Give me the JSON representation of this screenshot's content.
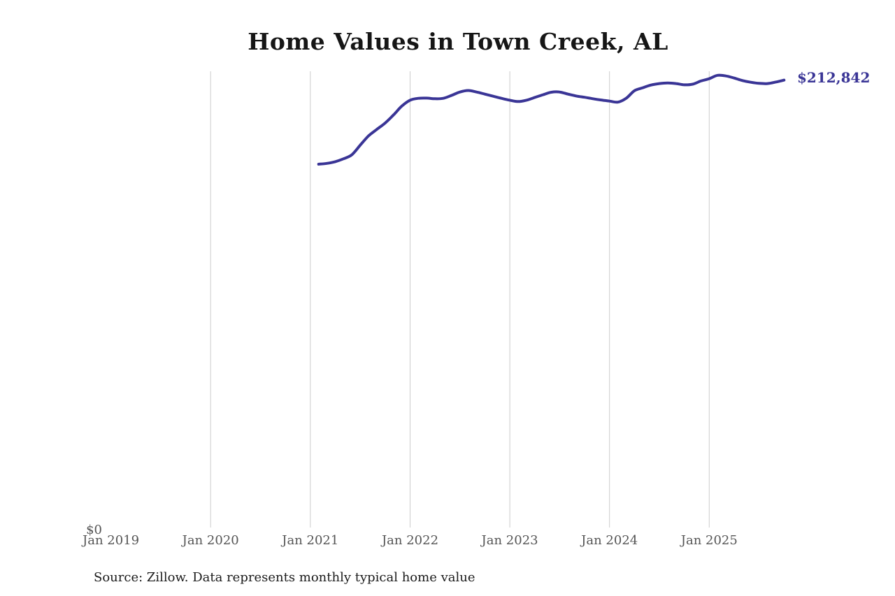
{
  "page": {
    "background": "#ffffff"
  },
  "chart_data": {
    "type": "line",
    "title": "Home Values in Town Creek, AL",
    "y_zero_label": "$0",
    "end_label": "$212,842",
    "latest_value": 212842,
    "legend": "none",
    "grid": "vertical-only",
    "x_axis_start": "Jan 2019",
    "x_ticks": [
      {
        "label": "Jan 2019",
        "gridline": false
      },
      {
        "label": "Jan 2020",
        "gridline": true
      },
      {
        "label": "Jan 2021",
        "gridline": true
      },
      {
        "label": "Jan 2022",
        "gridline": true
      },
      {
        "label": "Jan 2023",
        "gridline": true
      },
      {
        "label": "Jan 2024",
        "gridline": true
      },
      {
        "label": "Jan 2025",
        "gridline": true
      }
    ],
    "series": [
      {
        "name": "Monthly typical home value",
        "start_month": "Feb 2021",
        "monthly_values": [
          173000,
          173400,
          174200,
          175600,
          177500,
          182000,
          186400,
          189500,
          192500,
          196300,
          200500,
          203300,
          204200,
          204300,
          204000,
          204200,
          205600,
          207200,
          207900,
          207200,
          206200,
          205200,
          204200,
          203300,
          202700,
          203300,
          204600,
          205900,
          207100,
          207200,
          206200,
          205300,
          204700,
          204000,
          203400,
          202900,
          202400,
          204200,
          207800,
          209200,
          210500,
          211200,
          211500,
          211200,
          210600,
          210900,
          212400,
          213500,
          215100,
          214800,
          213800,
          212600,
          211800,
          211300,
          211200,
          211900,
          212842
        ]
      }
    ]
  },
  "footer": {
    "source": "Source: Zillow. Data represents monthly typical home value"
  },
  "colors": {
    "line": "#3a3596",
    "gridline": "#cccccc",
    "axis_text": "#555555",
    "title_text": "#161616",
    "source_text": "#1a1a1a",
    "accent_label": "#3a3596"
  }
}
